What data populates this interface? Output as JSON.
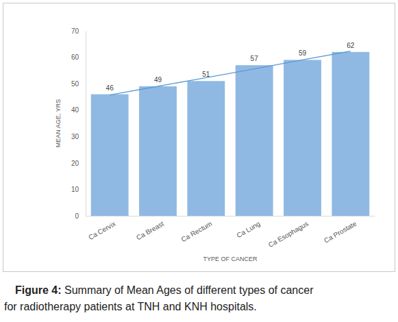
{
  "chart_data": {
    "type": "bar",
    "caption": {
      "label": "Figure 4:",
      "lines": [
        "Summary of Mean Ages of different types of cancer",
        "for radiotherapy patients at TNH and KNH hospitals."
      ]
    },
    "x_label": "TYPE OF CANCER",
    "y_label": "MEAN AGE, YRS",
    "categories": [
      "Ca Cervix",
      "Ca Breast",
      "Ca Rectum",
      "Ca Lung",
      "Ca Esophagus",
      "Ca Prostate"
    ],
    "series": [
      {
        "type": "bar",
        "color": "#8fb9e3",
        "data_labels": true,
        "values": [
          46,
          49,
          51,
          57,
          59,
          62
        ]
      },
      {
        "type": "line",
        "color": "#5b9bd5",
        "line_style": "solid",
        "values": [
          45.7,
          49.0,
          52.3,
          55.6,
          59.0,
          62.3
        ]
      }
    ],
    "ylim": [
      0,
      70
    ],
    "yticks": [
      0,
      10,
      20,
      30,
      40,
      50,
      60,
      70
    ],
    "grid": false
  }
}
